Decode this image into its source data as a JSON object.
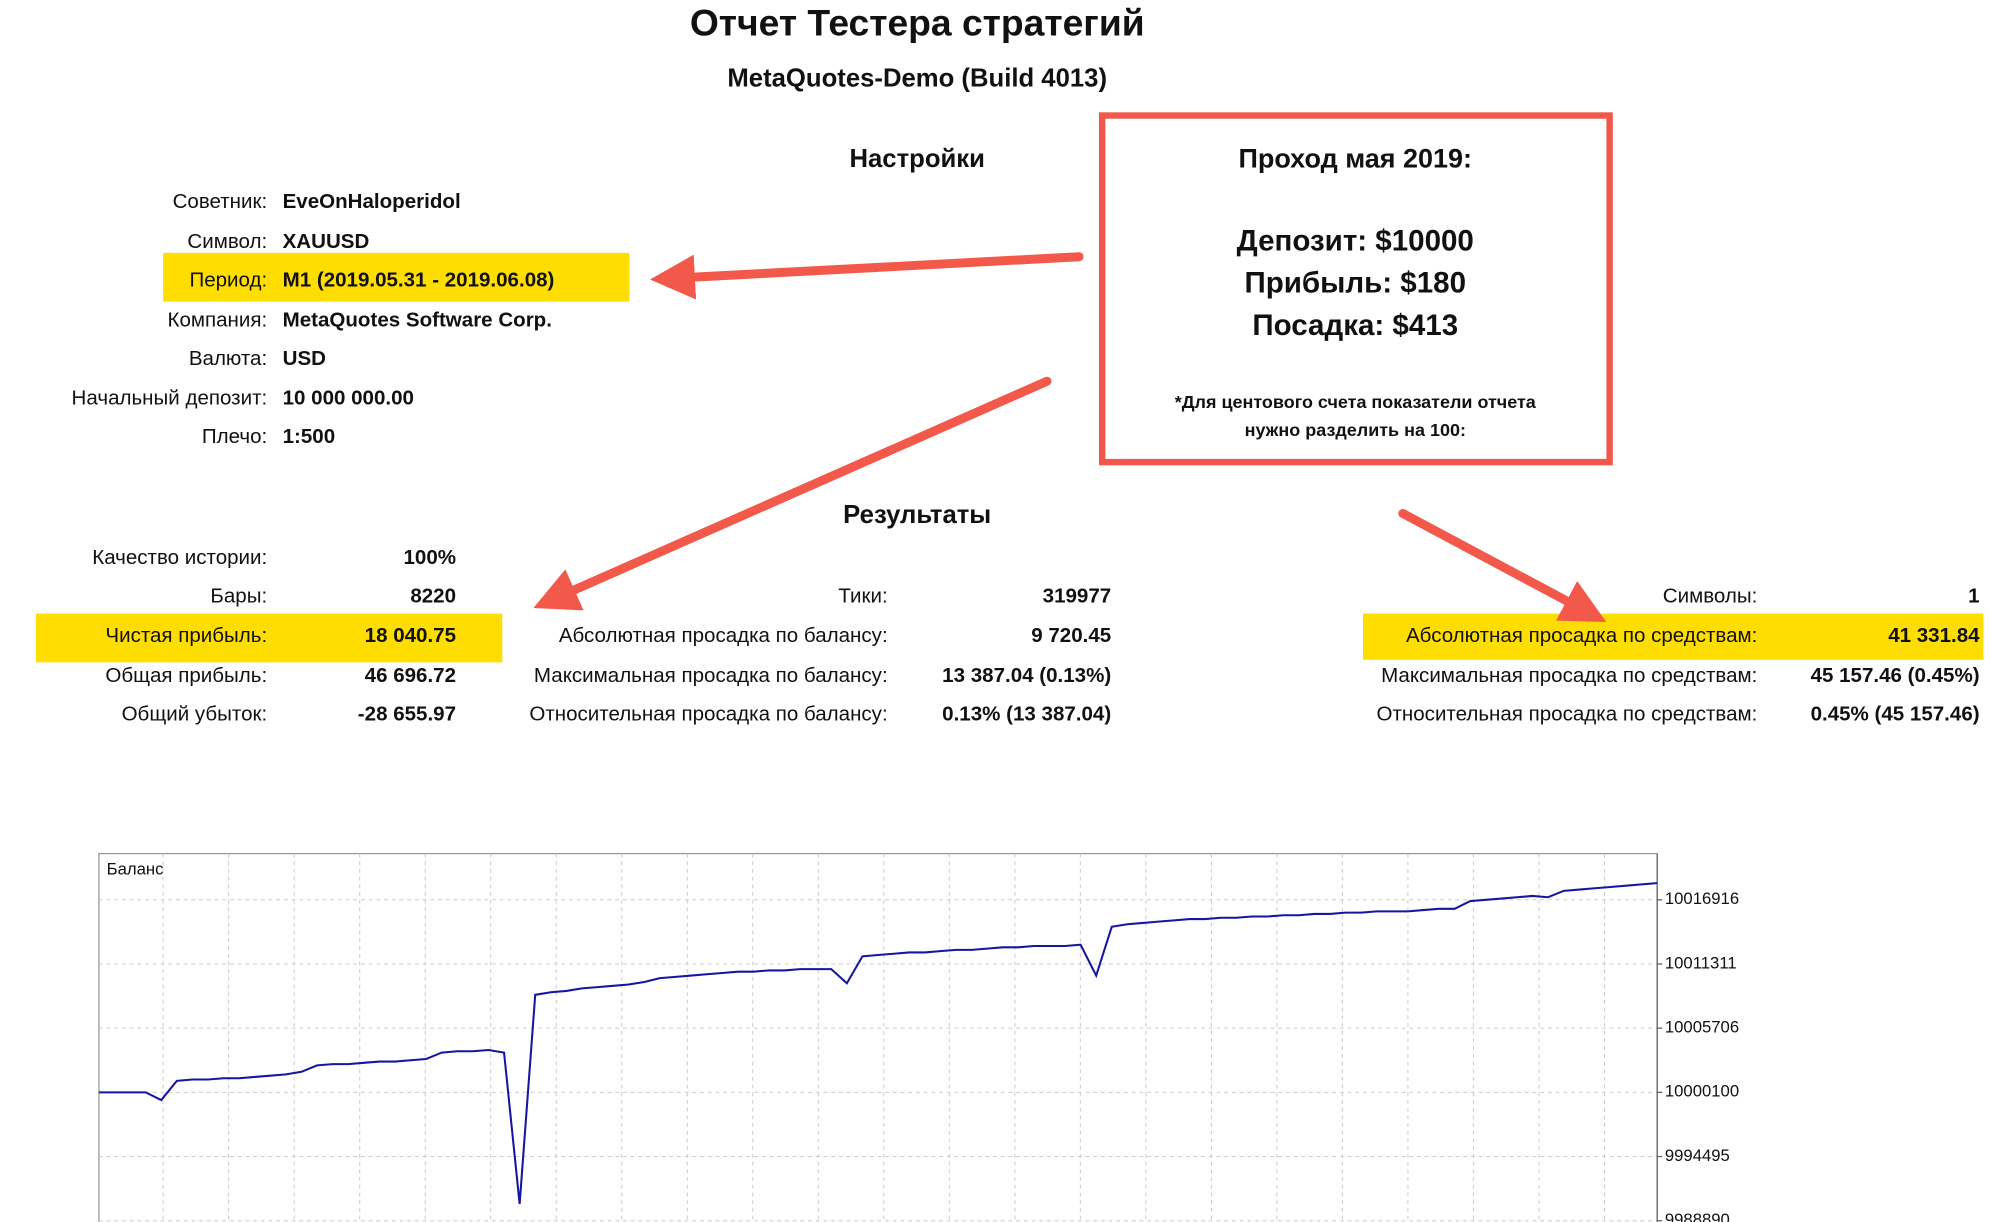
{
  "header": {
    "title": "Отчет Тестера стратегий",
    "subtitle": "MetaQuotes-Demo (Build 4013)"
  },
  "settings": {
    "heading": "Настройки",
    "rows": [
      [
        "Советник:",
        "EveOnHaloperidol"
      ],
      [
        "Символ:",
        "XAUUSD"
      ],
      [
        "Период:",
        "M1 (2019.05.31 - 2019.06.08)"
      ],
      [
        "Компания:",
        "MetaQuotes Software Corp."
      ],
      [
        "Валюта:",
        "USD"
      ],
      [
        "Начальный депозит:",
        "10 000 000.00"
      ],
      [
        "Плечо:",
        "1:500"
      ]
    ]
  },
  "callout": {
    "title": "Проход мая 2019:",
    "lines": [
      "Депозит: $10000",
      "Прибыль: $180",
      "Посадка: $413"
    ],
    "note": [
      "*Для центового счета показатели отчета",
      "нужно разделить на 100:"
    ]
  },
  "results": {
    "heading": "Результаты",
    "col1": [
      [
        "Качество истории:",
        "100%"
      ],
      [
        "Бары:",
        "8220"
      ],
      [
        "Чистая прибыль:",
        "18 040.75"
      ],
      [
        "Общая прибыль:",
        "46 696.72"
      ],
      [
        "Общий убыток:",
        "-28 655.97"
      ]
    ],
    "col2": [
      [
        "Тики:",
        "319977"
      ],
      [
        "Абсолютная просадка по балансу:",
        "9 720.45"
      ],
      [
        "Максимальная просадка по балансу:",
        "13 387.04 (0.13%)"
      ],
      [
        "Относительная просадка по балансу:",
        "0.13% (13 387.04)"
      ]
    ],
    "col3": [
      [
        "Символы:",
        "1"
      ],
      [
        "Абсолютная просадка по средствам:",
        "41 331.84"
      ],
      [
        "Максимальная просадка по средствам:",
        "45 157.46 (0.45%)"
      ],
      [
        "Относительная просадка по средствам:",
        "0.45% (45 157.46)"
      ]
    ]
  },
  "chart_data": {
    "type": "line",
    "title": "Баланс",
    "color": "#1616a0",
    "grid": true,
    "ylim": [
      9988890,
      10020950
    ],
    "yticks": [
      9988890,
      9994495,
      10000100,
      10005706,
      10011311,
      10016916
    ],
    "values": [
      10000099,
      10000099,
      10000099,
      10000099,
      9999427,
      10001108,
      10001220,
      10001220,
      10001332,
      10001332,
      10001445,
      10001557,
      10001669,
      10001893,
      10002453,
      10002566,
      10002566,
      10002678,
      10002790,
      10002790,
      10002902,
      10003014,
      10003574,
      10003687,
      10003687,
      10003799,
      10003574,
      9990347,
      10008619,
      10008843,
      10008955,
      10009179,
      10009292,
      10009404,
      10009516,
      10009740,
      10010076,
      10010188,
      10010300,
      10010413,
      10010525,
      10010637,
      10010637,
      10010749,
      10010749,
      10010861,
      10010861,
      10010861,
      10009628,
      10011982,
      10012094,
      10012206,
      10012318,
      10012318,
      10012430,
      10012542,
      10012542,
      10012655,
      10012767,
      10012767,
      10012879,
      10012879,
      10012879,
      10012991,
      10010300,
      10014560,
      10014784,
      10014897,
      10015009,
      10015121,
      10015233,
      10015233,
      10015345,
      10015345,
      10015457,
      10015457,
      10015569,
      10015569,
      10015681,
      10015681,
      10015793,
      10015793,
      10015905,
      10015905,
      10015905,
      10016018,
      10016130,
      10016130,
      10016802,
      10016914,
      10017026,
      10017139,
      10017251,
      10017139,
      10017699,
      10017811,
      10017923,
      10018035,
      10018147,
      10018260,
      10018372
    ]
  }
}
